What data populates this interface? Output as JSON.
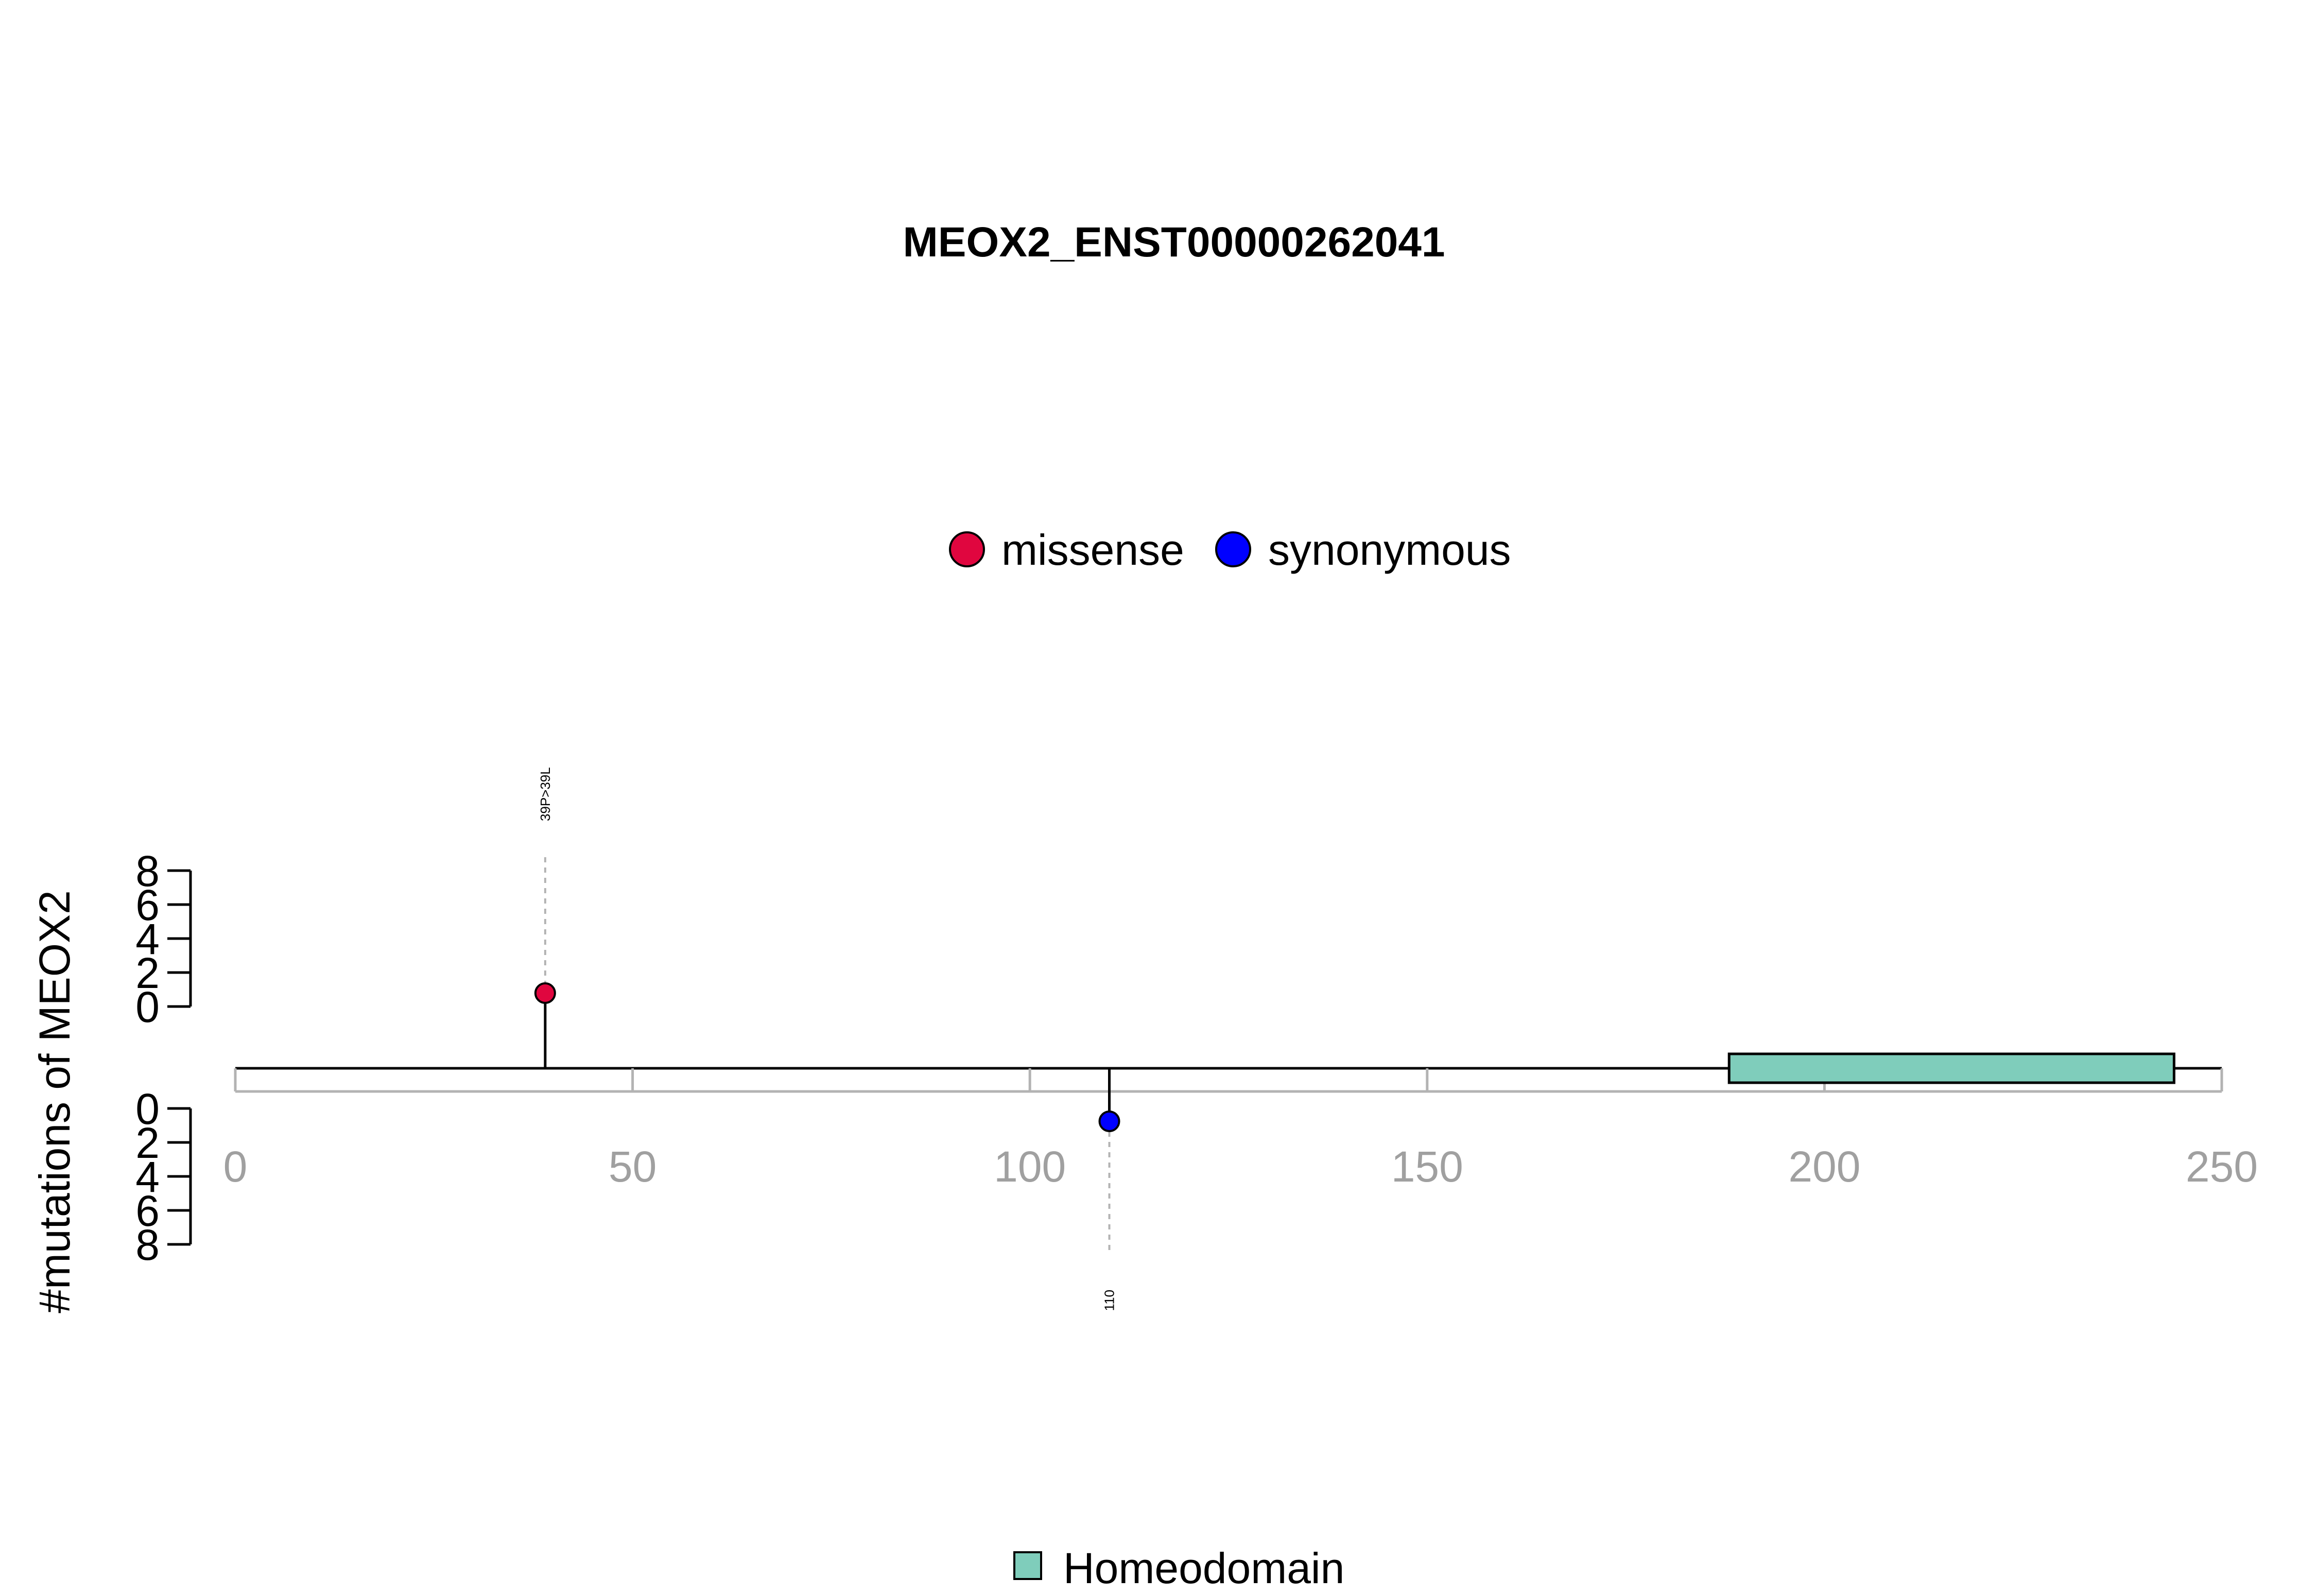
{
  "chart_data": {
    "type": "lollipop",
    "title": "MEOX2_ENST00000262041",
    "ylabel": "#mutations of MEOX2",
    "xlim": [
      0,
      250
    ],
    "x_ticks": [
      0,
      50,
      100,
      150,
      200,
      250
    ],
    "protein_length": 250,
    "upper_y_ticks": [
      0,
      2,
      4,
      6,
      8
    ],
    "lower_y_ticks": [
      0,
      2,
      4,
      6,
      8
    ],
    "mutation_legend": [
      {
        "name": "missense",
        "color": "#e0063f"
      },
      {
        "name": "synonymous",
        "color": "#0000ff"
      }
    ],
    "mutations": [
      {
        "position": 39,
        "count": 1,
        "type": "missense",
        "color": "#e0063f",
        "label": "39P>39L",
        "side": "top"
      },
      {
        "position": 110,
        "count": 1,
        "type": "synonymous",
        "color": "#0000ff",
        "label": "110",
        "side": "bottom"
      }
    ],
    "domains": [
      {
        "name": "Homeodomain",
        "start": 188,
        "end": 244,
        "color": "#7fcdbb"
      }
    ],
    "domain_legend": [
      {
        "name": "Homeodomain",
        "color": "#7fcdbb"
      }
    ]
  }
}
